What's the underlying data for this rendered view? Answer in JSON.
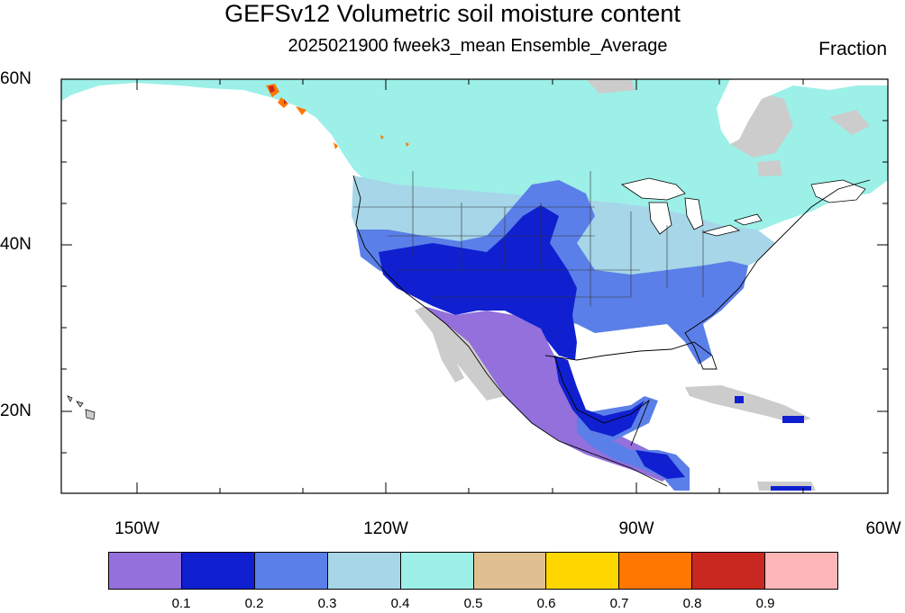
{
  "title": "GEFSv12 Volumetric soil moisture content",
  "subtitle": "2025021900 fweek3_mean Ensemble_Average",
  "units": "Fraction",
  "lat_labels": [
    "60N",
    "40N",
    "20N"
  ],
  "lon_labels": [
    "150W",
    "120W",
    "90W",
    "60W"
  ],
  "colorbar": {
    "colors": [
      "#9370db",
      "#1020d0",
      "#5b7fe8",
      "#a6d6e8",
      "#9cf0e8",
      "#e0c090",
      "#ffd700",
      "#ff7700",
      "#c82820",
      "#ffb6b8"
    ],
    "labels": [
      "0.1",
      "0.2",
      "0.3",
      "0.4",
      "0.5",
      "0.6",
      "0.7",
      "0.8",
      "0.9"
    ]
  },
  "colors": {
    "missing": "#cccccc",
    "water": "#ffffff",
    "coast": "#000000"
  }
}
